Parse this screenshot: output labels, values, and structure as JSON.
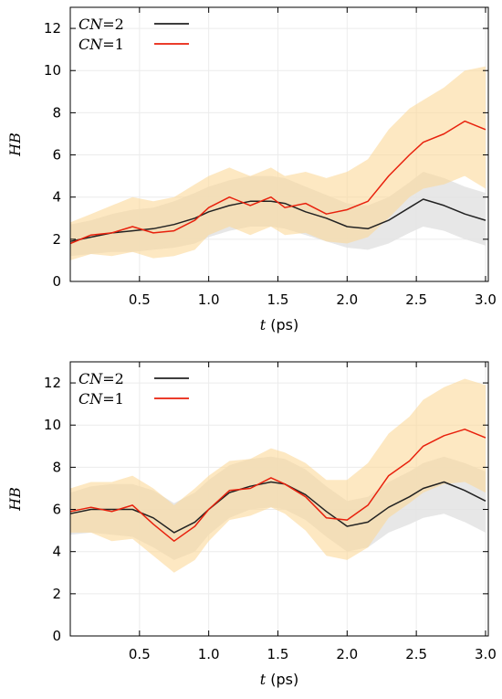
{
  "chart_data": [
    {
      "type": "line",
      "xlabel_var": "t",
      "xlabel_unit": "(ps)",
      "ylabel": "HB",
      "xlim": [
        0.0,
        3.02
      ],
      "ylim": [
        0,
        13
      ],
      "xticks": [
        "0.5",
        "1.0",
        "1.5",
        "2.0",
        "2.5",
        "3.0"
      ],
      "yticks": [
        "0",
        "2",
        "4",
        "6",
        "8",
        "10",
        "12"
      ],
      "grid": true,
      "legend_position": "top-left",
      "series": [
        {
          "name": "CN=2",
          "name_var": "CN",
          "name_val": "=2",
          "color": "#222222",
          "band_color": "#e3e3e3",
          "x": [
            0.0,
            0.15,
            0.3,
            0.45,
            0.6,
            0.75,
            0.9,
            1.0,
            1.15,
            1.3,
            1.45,
            1.55,
            1.7,
            1.85,
            2.0,
            2.15,
            2.3,
            2.45,
            2.55,
            2.7,
            2.85,
            3.0
          ],
          "y": [
            1.9,
            2.1,
            2.3,
            2.4,
            2.5,
            2.7,
            3.0,
            3.3,
            3.6,
            3.8,
            3.8,
            3.7,
            3.3,
            3.0,
            2.6,
            2.5,
            2.9,
            3.5,
            3.9,
            3.6,
            3.2,
            2.9
          ],
          "band_low": [
            1.2,
            1.3,
            1.4,
            1.4,
            1.5,
            1.6,
            1.8,
            2.1,
            2.4,
            2.6,
            2.6,
            2.5,
            2.2,
            1.9,
            1.6,
            1.5,
            1.8,
            2.3,
            2.6,
            2.4,
            2.0,
            1.7
          ],
          "band_high": [
            2.7,
            2.9,
            3.2,
            3.4,
            3.5,
            3.8,
            4.2,
            4.5,
            4.8,
            5.0,
            5.0,
            4.9,
            4.5,
            4.1,
            3.7,
            3.6,
            4.0,
            4.7,
            5.2,
            4.9,
            4.5,
            4.2
          ]
        },
        {
          "name": "CN=1",
          "name_var": "CN",
          "name_val": "=1",
          "color": "#e8210d",
          "band_color": "#fcd99a",
          "x": [
            0.0,
            0.15,
            0.3,
            0.45,
            0.6,
            0.75,
            0.9,
            1.0,
            1.15,
            1.3,
            1.45,
            1.55,
            1.7,
            1.85,
            2.0,
            2.15,
            2.3,
            2.45,
            2.55,
            2.7,
            2.85,
            3.0
          ],
          "y": [
            1.8,
            2.2,
            2.3,
            2.6,
            2.3,
            2.4,
            2.9,
            3.5,
            4.0,
            3.6,
            4.0,
            3.5,
            3.7,
            3.2,
            3.4,
            3.8,
            5.0,
            6.0,
            6.6,
            7.0,
            7.6,
            7.2
          ],
          "band_low": [
            1.0,
            1.3,
            1.2,
            1.4,
            1.1,
            1.2,
            1.5,
            2.2,
            2.6,
            2.2,
            2.6,
            2.2,
            2.3,
            1.9,
            1.8,
            2.1,
            3.0,
            4.0,
            4.4,
            4.6,
            5.0,
            4.4
          ],
          "band_high": [
            2.8,
            3.2,
            3.6,
            4.0,
            3.8,
            4.0,
            4.6,
            5.0,
            5.4,
            5.0,
            5.4,
            5.0,
            5.2,
            4.9,
            5.2,
            5.8,
            7.2,
            8.2,
            8.6,
            9.2,
            10.0,
            10.2
          ]
        }
      ]
    },
    {
      "type": "line",
      "xlabel_var": "t",
      "xlabel_unit": "(ps)",
      "ylabel": "HB",
      "xlim": [
        0.0,
        3.02
      ],
      "ylim": [
        0,
        13
      ],
      "xticks": [
        "0.5",
        "1.0",
        "1.5",
        "2.0",
        "2.5",
        "3.0"
      ],
      "yticks": [
        "0",
        "2",
        "4",
        "6",
        "8",
        "10",
        "12"
      ],
      "grid": true,
      "legend_position": "top-left",
      "series": [
        {
          "name": "CN=2",
          "name_var": "CN",
          "name_val": "=2",
          "color": "#222222",
          "band_color": "#e3e3e3",
          "x": [
            0.0,
            0.15,
            0.3,
            0.45,
            0.6,
            0.75,
            0.9,
            1.0,
            1.15,
            1.3,
            1.45,
            1.55,
            1.7,
            1.85,
            2.0,
            2.15,
            2.3,
            2.45,
            2.55,
            2.7,
            2.85,
            3.0
          ],
          "y": [
            5.8,
            6.0,
            6.0,
            6.0,
            5.6,
            4.9,
            5.4,
            6.0,
            6.8,
            7.1,
            7.3,
            7.2,
            6.7,
            5.9,
            5.2,
            5.4,
            6.1,
            6.6,
            7.0,
            7.3,
            6.9,
            6.4
          ],
          "band_low": [
            4.8,
            4.9,
            4.8,
            4.7,
            4.2,
            3.6,
            4.0,
            4.8,
            5.6,
            6.0,
            6.1,
            6.0,
            5.5,
            4.7,
            4.0,
            4.2,
            4.9,
            5.3,
            5.6,
            5.8,
            5.4,
            4.9
          ],
          "band_high": [
            6.8,
            7.1,
            7.2,
            7.2,
            6.9,
            6.3,
            6.8,
            7.4,
            8.1,
            8.4,
            8.5,
            8.4,
            7.9,
            7.1,
            6.4,
            6.6,
            7.3,
            7.8,
            8.2,
            8.5,
            8.2,
            7.8
          ]
        },
        {
          "name": "CN=1",
          "name_var": "CN",
          "name_val": "=1",
          "color": "#e8210d",
          "band_color": "#fcd99a",
          "x": [
            0.0,
            0.15,
            0.3,
            0.45,
            0.6,
            0.75,
            0.9,
            1.0,
            1.15,
            1.3,
            1.45,
            1.55,
            1.7,
            1.85,
            2.0,
            2.15,
            2.3,
            2.45,
            2.55,
            2.7,
            2.85,
            3.0
          ],
          "y": [
            5.9,
            6.1,
            5.9,
            6.2,
            5.3,
            4.5,
            5.2,
            6.0,
            6.9,
            7.0,
            7.5,
            7.2,
            6.6,
            5.6,
            5.5,
            6.2,
            7.6,
            8.3,
            9.0,
            9.5,
            9.8,
            9.4
          ],
          "band_low": [
            4.9,
            4.9,
            4.5,
            4.6,
            3.8,
            3.0,
            3.6,
            4.5,
            5.5,
            5.7,
            6.1,
            5.8,
            5.0,
            3.8,
            3.6,
            4.2,
            5.6,
            6.3,
            6.8,
            7.2,
            7.3,
            6.8
          ],
          "band_high": [
            7.0,
            7.3,
            7.3,
            7.6,
            7.0,
            6.2,
            7.0,
            7.6,
            8.3,
            8.4,
            8.9,
            8.7,
            8.2,
            7.4,
            7.4,
            8.2,
            9.6,
            10.4,
            11.2,
            11.8,
            12.2,
            11.9
          ]
        }
      ]
    }
  ]
}
